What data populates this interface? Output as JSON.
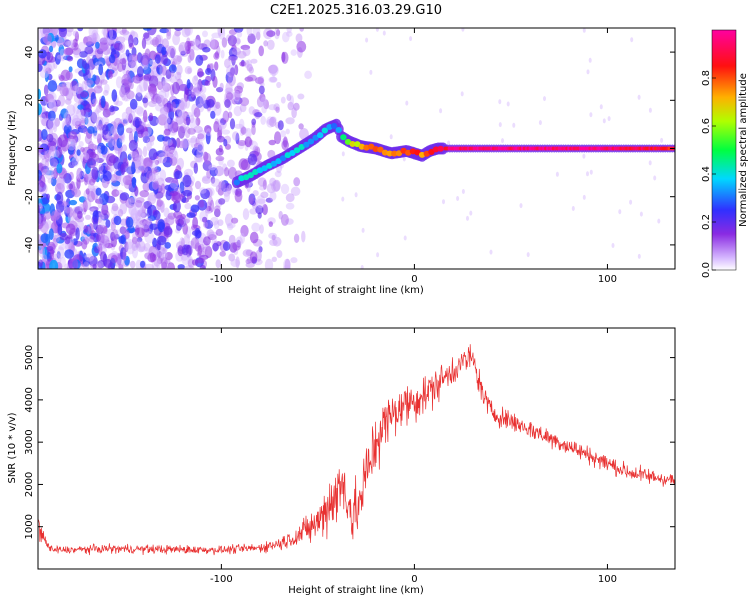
{
  "title": "C2E1.2025.316.03.29.G10",
  "chart_data": [
    {
      "type": "heatmap",
      "name": "spectrogram",
      "xlabel": "Height of straight line (km)",
      "ylabel": "Frequency (Hz)",
      "xlim": [
        -195,
        135
      ],
      "ylim": [
        -50,
        50
      ],
      "xticks": [
        -100,
        0,
        100
      ],
      "yticks": [
        -40,
        -20,
        0,
        20,
        40
      ],
      "colorbar": {
        "label": "Normalized spectral amplitude",
        "range": [
          0,
          1
        ],
        "ticks": [
          "0.0",
          "0.2",
          "0.4",
          "0.6",
          "0.8"
        ],
        "colors": [
          "#ffffff",
          "#8a2be2",
          "#3030ff",
          "#00d8ff",
          "#00ff40",
          "#ffff00",
          "#ff8000",
          "#ff0000",
          "#ff00a0"
        ]
      },
      "signal_track": {
        "x": [
          -92,
          -84,
          -76,
          -68,
          -60,
          -52,
          -46,
          -40,
          -38,
          -34,
          -28,
          -20,
          -12,
          -4,
          0,
          4,
          8,
          12,
          20,
          40,
          60,
          80,
          100,
          120,
          135
        ],
        "frequency": [
          -14,
          -11,
          -7,
          -4,
          0,
          4,
          8,
          10,
          5,
          3,
          1,
          0,
          -2,
          -1,
          -2,
          -3,
          -1,
          0,
          0,
          0,
          0,
          0,
          0,
          0,
          0
        ],
        "amplitude": [
          0.35,
          0.4,
          0.35,
          0.35,
          0.4,
          0.35,
          0.35,
          0.3,
          0.45,
          0.6,
          0.7,
          0.8,
          0.75,
          0.8,
          0.85,
          0.75,
          0.8,
          0.85,
          0.95,
          0.95,
          0.95,
          0.95,
          0.95,
          0.9,
          0.85
        ]
      },
      "noise_region": {
        "x_range": [
          -195,
          -65
        ],
        "amplitude": [
          0.05,
          0.35
        ]
      }
    },
    {
      "type": "line",
      "name": "snr",
      "xlabel": "Height of straight line (km)",
      "ylabel": "SNR (10 * v/v)",
      "xlim": [
        -195,
        135
      ],
      "ylim": [
        0,
        5700
      ],
      "xticks": [
        -100,
        0,
        100
      ],
      "yticks": [
        1000,
        2000,
        3000,
        4000,
        5000
      ],
      "color": "#e83030",
      "envelope": {
        "x": [
          -195,
          -192,
          -188,
          -180,
          -160,
          -140,
          -120,
          -100,
          -80,
          -70,
          -60,
          -50,
          -45,
          -40,
          -36,
          -32,
          -28,
          -24,
          -20,
          -16,
          -12,
          -8,
          -4,
          0,
          5,
          10,
          15,
          20,
          25,
          30,
          35,
          40,
          50,
          60,
          70,
          80,
          90,
          100,
          110,
          120,
          135
        ],
        "mean": [
          1100,
          700,
          450,
          450,
          480,
          470,
          460,
          450,
          500,
          600,
          800,
          1100,
          1500,
          1800,
          2000,
          1200,
          1600,
          2400,
          3000,
          3400,
          3600,
          3800,
          3900,
          4000,
          4100,
          4300,
          4500,
          4700,
          4900,
          5000,
          4200,
          3700,
          3500,
          3300,
          3100,
          2900,
          2700,
          2500,
          2300,
          2200,
          2100
        ],
        "spread": [
          300,
          200,
          120,
          100,
          120,
          120,
          120,
          110,
          130,
          180,
          300,
          500,
          800,
          900,
          900,
          900,
          800,
          900,
          900,
          700,
          700,
          600,
          600,
          600,
          500,
          500,
          450,
          400,
          400,
          350,
          350,
          300,
          280,
          260,
          250,
          240,
          240,
          230,
          230,
          220,
          200
        ]
      }
    }
  ]
}
